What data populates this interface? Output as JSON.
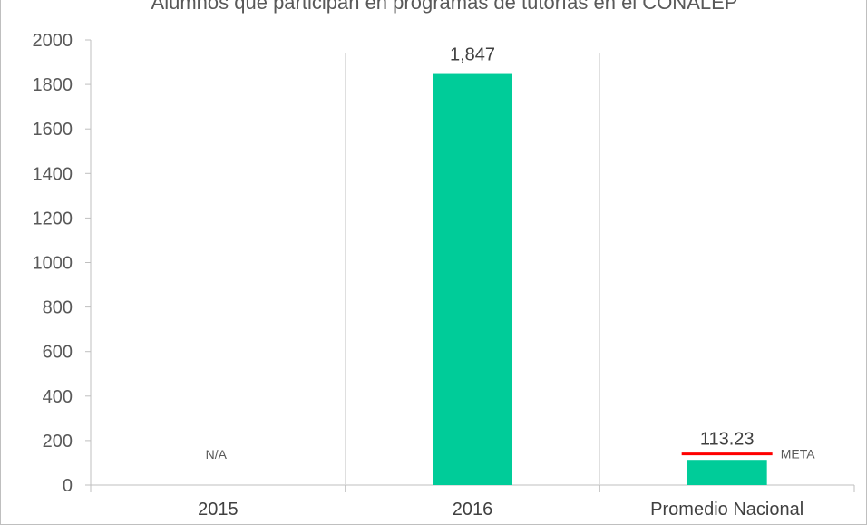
{
  "chart_data": {
    "type": "bar",
    "title": "Alumnos que participan en programas de tutorías en el CONALEP",
    "categories": [
      "2015",
      "2016",
      "Promedio Nacional"
    ],
    "values": [
      null,
      1847,
      113.23
    ],
    "data_labels": [
      "N/A",
      "1,847",
      "113.23"
    ],
    "ylim": [
      0,
      2000
    ],
    "yticks": [
      "0",
      "200",
      "400",
      "600",
      "800",
      "1000",
      "1200",
      "1400",
      "1600",
      "1800",
      "2000"
    ],
    "grid": "vertical category separators",
    "colors": {
      "bar": "#00cc99",
      "meta_line": "#ff0000"
    },
    "meta": {
      "label": "META",
      "value": 140,
      "category": "Promedio Nacional"
    }
  }
}
